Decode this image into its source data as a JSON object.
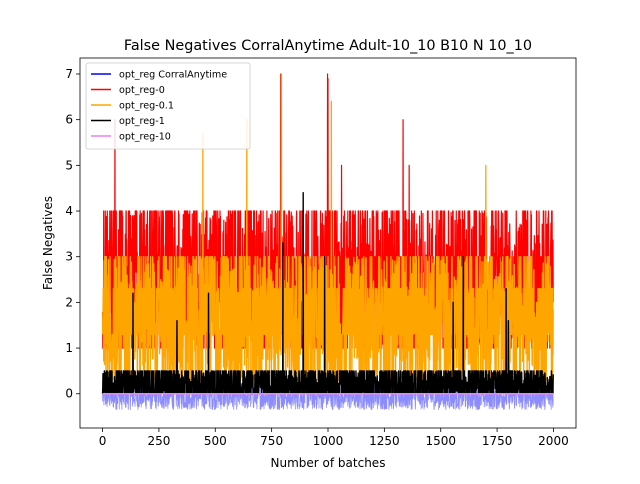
{
  "chart_data": {
    "type": "line",
    "title": "False Negatives CorralAnytime Adult-10_10 B10 N 10_10",
    "xlabel": "Number of batches",
    "ylabel": "False Negatives",
    "xlim": [
      -100,
      2100
    ],
    "ylim": [
      -0.75,
      7.35
    ],
    "xticks": [
      0,
      250,
      500,
      750,
      1000,
      1250,
      1500,
      1750,
      2000
    ],
    "yticks": [
      0,
      1,
      2,
      3,
      4,
      5,
      6,
      7
    ],
    "grid": false,
    "legend_position": "upper-left",
    "n_points": 2000,
    "series": [
      {
        "name": "opt_reg CorralAnytime",
        "color": "#0000ff",
        "level": 0,
        "band": [
          -0.35,
          0.25
        ],
        "description": "noisy band around 0"
      },
      {
        "name": "opt_reg-0",
        "color": "#ff0000",
        "base_range": [
          1.0,
          4.0
        ],
        "peaks": [
          [
            55,
            6
          ],
          [
            790,
            7
          ],
          [
            998,
            7
          ],
          [
            1000,
            6.9
          ],
          [
            1333,
            6
          ],
          [
            1360,
            5
          ],
          [
            1060,
            5
          ]
        ]
      },
      {
        "name": "opt_reg-0.1",
        "color": "#ffa500",
        "base_range": [
          0.3,
          3.0
        ],
        "peaks": [
          [
            793,
            7
          ],
          [
            640,
            6
          ],
          [
            445,
            5.7
          ],
          [
            1015,
            6.4
          ],
          [
            1700,
            5
          ]
        ]
      },
      {
        "name": "opt_reg-1",
        "color": "#000000",
        "base_range": [
          0.0,
          0.5
        ],
        "peaks": [
          [
            890,
            4.4
          ],
          [
            800,
            3.3
          ],
          [
            985,
            3.0
          ],
          [
            1600,
            3.0
          ],
          [
            470,
            2.2
          ],
          [
            1555,
            2.0
          ],
          [
            1790,
            2.3
          ],
          [
            135,
            2.2
          ],
          [
            330,
            1.6
          ],
          [
            1800,
            1.6
          ]
        ]
      },
      {
        "name": "opt_reg-10",
        "color": "#ee82ee",
        "level": 0,
        "band": [
          -0.05,
          0.05
        ]
      }
    ]
  }
}
